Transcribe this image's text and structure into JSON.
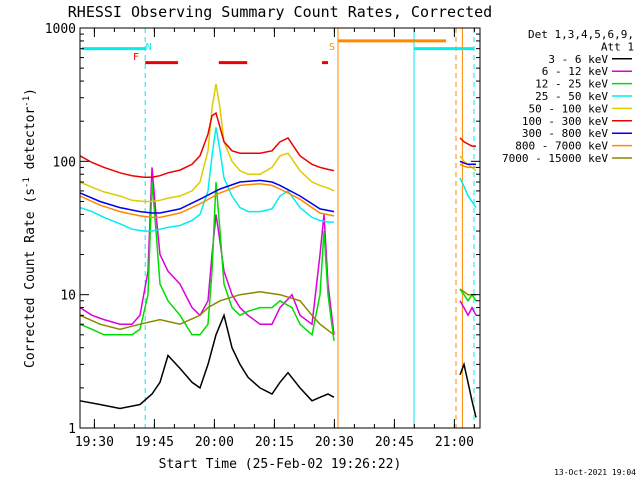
{
  "chart_data": {
    "type": "line",
    "title": "RHESSI Observing Summary Count Rates, Corrected",
    "xlabel": "Start Time (25-Feb-02 19:26:22)",
    "ylabel": "Corrected Count Rate (s",
    "ylabel_sup": "-1",
    "ylabel_tail": " detector",
    "ylabel_end": ")",
    "x_unit": "minutes since 19:26:22",
    "xlim": [
      0,
      100
    ],
    "ylim": [
      1,
      1000
    ],
    "y_scale": "log",
    "x_ticks": [
      {
        "label": "19:30",
        "x": 3.6
      },
      {
        "label": "19:45",
        "x": 18.6
      },
      {
        "label": "20:00",
        "x": 33.6
      },
      {
        "label": "20:15",
        "x": 48.6
      },
      {
        "label": "20:30",
        "x": 63.6
      },
      {
        "label": "20:45",
        "x": 78.6
      },
      {
        "label": "21:00",
        "x": 93.6
      }
    ],
    "y_ticks": [
      {
        "label": "1",
        "y": 1
      },
      {
        "label": "10",
        "y": 10
      },
      {
        "label": "100",
        "y": 100
      },
      {
        "label": "1000",
        "y": 1000
      }
    ],
    "legend": {
      "header1": "Det 1,3,4,5,6,9,",
      "header2": "Att 1",
      "placement": "right"
    },
    "series": [
      {
        "name": "3 - 6 keV",
        "color": "#000000",
        "x": [
          0,
          5,
          10,
          15,
          18,
          20,
          22,
          25,
          28,
          30,
          32,
          34,
          36,
          38,
          40,
          42,
          45,
          48,
          50,
          52,
          55,
          58,
          60,
          62,
          63.5,
          95,
          96,
          97,
          98,
          99
        ],
        "y": [
          1.6,
          1.5,
          1.4,
          1.5,
          1.8,
          2.2,
          3.5,
          2.8,
          2.2,
          2.0,
          3,
          5,
          7,
          4,
          3,
          2.4,
          2.0,
          1.8,
          2.2,
          2.6,
          2.0,
          1.6,
          1.7,
          1.8,
          1.7,
          2.5,
          3,
          2.2,
          1.6,
          1.2
        ]
      },
      {
        "name": "6 - 12 keV",
        "color": "#dd00dd",
        "x": [
          0,
          3,
          6,
          10,
          13,
          15,
          17,
          18,
          19,
          20,
          22,
          25,
          28,
          30,
          32,
          33,
          34,
          35,
          36,
          38,
          40,
          42,
          45,
          48,
          50,
          53,
          55,
          58,
          60,
          61,
          62,
          63.5,
          95,
          96,
          97,
          98,
          99
        ],
        "y": [
          8,
          7,
          6.5,
          6,
          6,
          7,
          15,
          90,
          40,
          20,
          15,
          12,
          8,
          7,
          9,
          20,
          40,
          25,
          15,
          10,
          8,
          7,
          6,
          6,
          8,
          10,
          7,
          6,
          20,
          40,
          12,
          5,
          9,
          8,
          7,
          8,
          7
        ]
      },
      {
        "name": "12 - 25 keV",
        "color": "#00dd00",
        "x": [
          0,
          3,
          6,
          10,
          13,
          15,
          17,
          18,
          19,
          20,
          22,
          25,
          28,
          30,
          32,
          33,
          34,
          35,
          36,
          38,
          40,
          42,
          45,
          48,
          50,
          53,
          55,
          58,
          60,
          61,
          62,
          63.5,
          95,
          96,
          97,
          98,
          99
        ],
        "y": [
          6,
          5.5,
          5,
          5,
          5,
          5.5,
          10,
          70,
          30,
          12,
          9,
          7,
          5,
          5,
          6,
          15,
          70,
          30,
          12,
          8,
          7,
          7.5,
          8,
          8,
          9,
          8,
          6,
          5,
          10,
          30,
          10,
          4.5,
          11,
          10,
          9,
          10,
          9
        ]
      },
      {
        "name": "25 - 50 keV",
        "color": "#00eeee",
        "x": [
          0,
          3,
          6,
          10,
          13,
          16,
          18,
          20,
          22,
          25,
          28,
          30,
          32,
          33,
          34,
          35,
          36,
          38,
          40,
          42,
          45,
          48,
          50,
          52,
          55,
          58,
          60,
          62,
          63.5,
          95,
          96,
          97,
          98,
          99
        ],
        "y": [
          45,
          42,
          38,
          34,
          31,
          30,
          30,
          31,
          32,
          33,
          36,
          40,
          60,
          110,
          180,
          120,
          75,
          55,
          45,
          42,
          42,
          44,
          55,
          60,
          45,
          38,
          36,
          35,
          35,
          75,
          65,
          55,
          50,
          45
        ]
      },
      {
        "name": "50 - 100 keV",
        "color": "#ddcc00",
        "x": [
          0,
          3,
          6,
          10,
          13,
          16,
          18,
          20,
          22,
          25,
          28,
          30,
          32,
          33,
          34,
          35,
          36,
          38,
          40,
          42,
          45,
          48,
          50,
          52,
          55,
          58,
          60,
          62,
          63.5,
          95,
          96,
          97,
          98,
          99
        ],
        "y": [
          70,
          64,
          59,
          55,
          51,
          50,
          50,
          51,
          53,
          55,
          60,
          70,
          120,
          250,
          380,
          250,
          140,
          100,
          85,
          80,
          80,
          90,
          110,
          115,
          85,
          70,
          66,
          63,
          60,
          110,
          100,
          95,
          90,
          85
        ]
      },
      {
        "name": "100 - 300 keV",
        "color": "#ee0000",
        "x": [
          0,
          3,
          6,
          10,
          13,
          16,
          18,
          20,
          22,
          25,
          28,
          30,
          32,
          33,
          34,
          35,
          36,
          38,
          40,
          42,
          45,
          48,
          50,
          52,
          55,
          58,
          60,
          62,
          63.5,
          95,
          96,
          97,
          98,
          99
        ],
        "y": [
          110,
          98,
          90,
          82,
          78,
          76,
          76,
          78,
          82,
          86,
          95,
          110,
          160,
          220,
          230,
          180,
          140,
          120,
          115,
          115,
          115,
          120,
          140,
          150,
          110,
          95,
          90,
          87,
          85,
          150,
          140,
          135,
          130,
          130
        ]
      },
      {
        "name": "300 - 800 keV",
        "color": "#0000ee",
        "x": [
          0,
          5,
          10,
          15,
          18,
          20,
          25,
          30,
          35,
          40,
          45,
          48,
          50,
          55,
          58,
          60,
          63.5,
          95,
          96,
          97,
          98,
          99
        ],
        "y": [
          58,
          50,
          45,
          42,
          41,
          41,
          44,
          52,
          62,
          70,
          72,
          70,
          66,
          55,
          48,
          44,
          42,
          100,
          97,
          95,
          95,
          95
        ]
      },
      {
        "name": "800 - 7000 keV",
        "color": "#ff8800",
        "x": [
          0,
          5,
          10,
          15,
          18,
          20,
          25,
          30,
          35,
          40,
          45,
          48,
          50,
          55,
          58,
          60,
          63.5,
          95,
          96,
          97,
          98,
          99
        ],
        "y": [
          55,
          47,
          42,
          39,
          38,
          38,
          41,
          48,
          58,
          66,
          68,
          66,
          62,
          52,
          45,
          41,
          39,
          95,
          92,
          90,
          90,
          90
        ]
      },
      {
        "name": "7000 - 15000 keV",
        "color": "#888800",
        "x": [
          0,
          5,
          10,
          15,
          20,
          25,
          30,
          32,
          35,
          40,
          45,
          50,
          55,
          58,
          60,
          63.5,
          95,
          96,
          97,
          98,
          99
        ],
        "y": [
          7,
          6,
          5.5,
          6,
          6.5,
          6,
          7,
          8,
          9,
          10,
          10.5,
          10,
          9,
          7,
          6,
          5,
          11,
          10.5,
          10,
          10,
          10
        ]
      }
    ],
    "annotations": {
      "flags": [
        {
          "code": "N",
          "color": "#00eeee",
          "x": 17.2
        },
        {
          "code": "F",
          "color": "#ee0000",
          "x": 14.0
        },
        {
          "code": "S",
          "color": "#ff8800",
          "x": 63.0
        }
      ],
      "bars": [
        {
          "color": "#00eeee",
          "x0": 0.5,
          "x1": 16.5,
          "y": 700
        },
        {
          "color": "#ee0000",
          "x0": 16.3,
          "x1": 24.5,
          "y": 550
        },
        {
          "color": "#ee0000",
          "x0": 34.7,
          "x1": 41.8,
          "y": 550
        },
        {
          "color": "#ee0000",
          "x0": 60.5,
          "x1": 62.0,
          "y": 550
        },
        {
          "color": "#ff8800",
          "x0": 64.5,
          "x1": 91.5,
          "y": 800
        },
        {
          "color": "#00eeee",
          "x0": 83.5,
          "x1": 98.5,
          "y": 700
        }
      ],
      "vlines": [
        {
          "color": "#00eeee",
          "x": 16.3,
          "dashed": true
        },
        {
          "color": "#ff8800",
          "x": 64.5,
          "dashed": false
        },
        {
          "color": "#00eeee",
          "x": 83.5,
          "dashed": false
        },
        {
          "color": "#ff8800",
          "x": 94.0,
          "dashed": true
        },
        {
          "color": "#ff8800",
          "x": 95.6,
          "dashed": false
        },
        {
          "color": "#00eeee",
          "x": 98.5,
          "dashed": true
        }
      ]
    },
    "grid": false
  },
  "footer_stamp": "13-Oct-2021 19:04"
}
